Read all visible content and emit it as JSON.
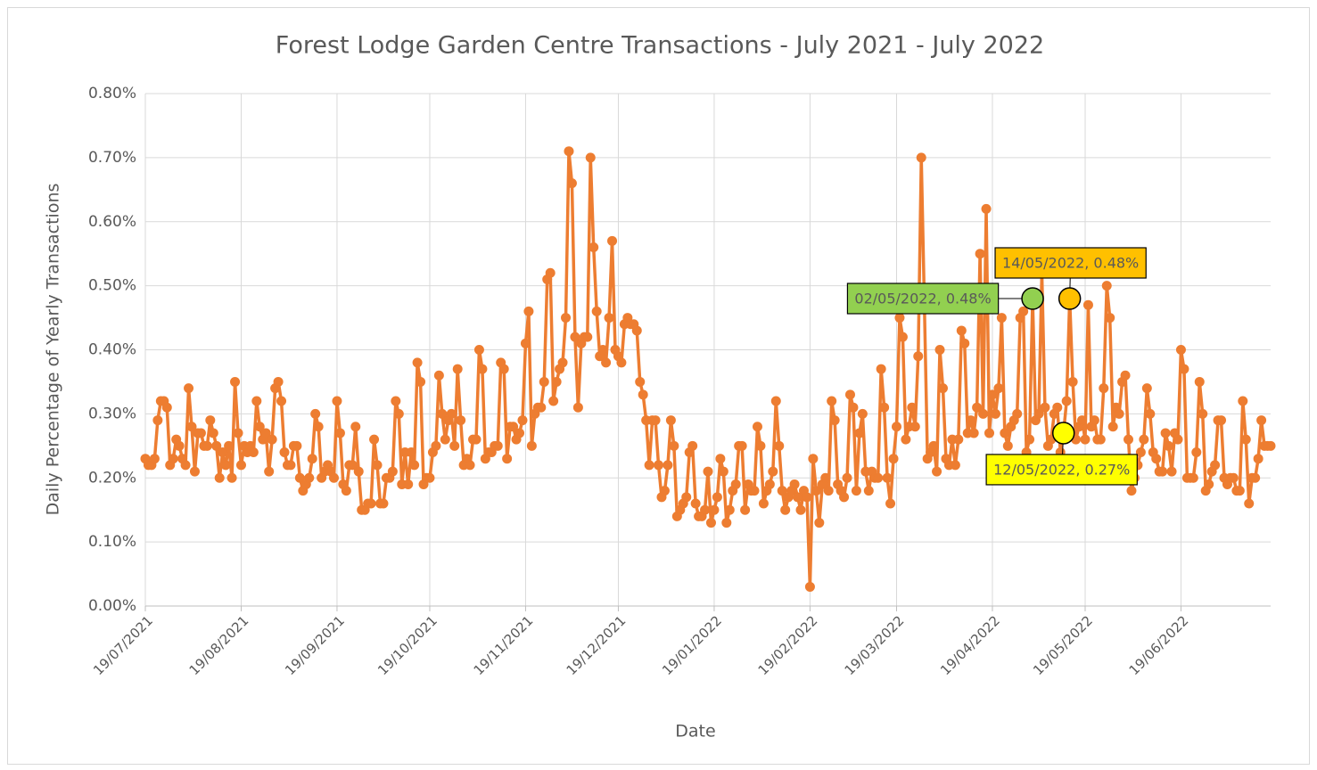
{
  "chart_data": {
    "type": "line",
    "title": "Forest Lodge Garden Centre Transactions - July 2021 - July 2022",
    "x_label": "Date",
    "y_label": "Daily Percentage of Yearly Transactions",
    "x": [
      "19/07/2021",
      "20/07/2021",
      "21/07/2021",
      "22/07/2021",
      "23/07/2021",
      "24/07/2021",
      "25/07/2021",
      "26/07/2021",
      "27/07/2021",
      "28/07/2021",
      "29/07/2021",
      "30/07/2021",
      "31/07/2021",
      "01/08/2021",
      "02/08/2021",
      "03/08/2021",
      "04/08/2021",
      "05/08/2021",
      "06/08/2021",
      "07/08/2021",
      "08/08/2021",
      "09/08/2021",
      "10/08/2021",
      "11/08/2021",
      "12/08/2021",
      "13/08/2021",
      "14/08/2021",
      "15/08/2021",
      "16/08/2021",
      "17/08/2021",
      "18/08/2021",
      "19/08/2021",
      "20/08/2021",
      "21/08/2021",
      "22/08/2021",
      "23/08/2021",
      "24/08/2021",
      "25/08/2021",
      "26/08/2021",
      "27/08/2021",
      "28/08/2021",
      "29/08/2021",
      "30/08/2021",
      "31/08/2021",
      "01/09/2021",
      "02/09/2021",
      "03/09/2021",
      "04/09/2021",
      "05/09/2021",
      "06/09/2021",
      "07/09/2021",
      "08/09/2021",
      "09/09/2021",
      "10/09/2021",
      "11/09/2021",
      "12/09/2021",
      "13/09/2021",
      "14/09/2021",
      "15/09/2021",
      "16/09/2021",
      "17/09/2021",
      "18/09/2021",
      "19/09/2021",
      "20/09/2021",
      "21/09/2021",
      "22/09/2021",
      "23/09/2021",
      "24/09/2021",
      "25/09/2021",
      "26/09/2021",
      "27/09/2021",
      "28/09/2021",
      "29/09/2021",
      "30/09/2021",
      "01/10/2021",
      "02/10/2021",
      "03/10/2021",
      "04/10/2021",
      "05/10/2021",
      "06/10/2021",
      "07/10/2021",
      "08/10/2021",
      "09/10/2021",
      "10/10/2021",
      "11/10/2021",
      "12/10/2021",
      "13/10/2021",
      "14/10/2021",
      "15/10/2021",
      "16/10/2021",
      "17/10/2021",
      "18/10/2021",
      "19/10/2021",
      "20/10/2021",
      "21/10/2021",
      "22/10/2021",
      "23/10/2021",
      "24/10/2021",
      "25/10/2021",
      "26/10/2021",
      "27/10/2021",
      "28/10/2021",
      "29/10/2021",
      "30/10/2021",
      "31/10/2021",
      "01/11/2021",
      "02/11/2021",
      "03/11/2021",
      "04/11/2021",
      "05/11/2021",
      "06/11/2021",
      "07/11/2021",
      "08/11/2021",
      "09/11/2021",
      "10/11/2021",
      "11/11/2021",
      "12/11/2021",
      "13/11/2021",
      "14/11/2021",
      "15/11/2021",
      "16/11/2021",
      "17/11/2021",
      "18/11/2021",
      "19/11/2021",
      "20/11/2021",
      "21/11/2021",
      "22/11/2021",
      "23/11/2021",
      "24/11/2021",
      "25/11/2021",
      "26/11/2021",
      "27/11/2021",
      "28/11/2021",
      "29/11/2021",
      "30/11/2021",
      "01/12/2021",
      "02/12/2021",
      "03/12/2021",
      "04/12/2021",
      "05/12/2021",
      "06/12/2021",
      "07/12/2021",
      "08/12/2021",
      "09/12/2021",
      "10/12/2021",
      "11/12/2021",
      "12/12/2021",
      "13/12/2021",
      "14/12/2021",
      "15/12/2021",
      "16/12/2021",
      "17/12/2021",
      "18/12/2021",
      "19/12/2021",
      "20/12/2021",
      "21/12/2021",
      "22/12/2021",
      "23/12/2021",
      "24/12/2021",
      "25/12/2021",
      "26/12/2021",
      "27/12/2021",
      "28/12/2021",
      "29/12/2021",
      "30/12/2021",
      "31/12/2021",
      "01/01/2022",
      "02/01/2022",
      "03/01/2022",
      "04/01/2022",
      "05/01/2022",
      "06/01/2022",
      "07/01/2022",
      "08/01/2022",
      "09/01/2022",
      "10/01/2022",
      "11/01/2022",
      "12/01/2022",
      "13/01/2022",
      "14/01/2022",
      "15/01/2022",
      "16/01/2022",
      "17/01/2022",
      "18/01/2022",
      "19/01/2022",
      "20/01/2022",
      "21/01/2022",
      "22/01/2022",
      "23/01/2022",
      "24/01/2022",
      "25/01/2022",
      "26/01/2022",
      "27/01/2022",
      "28/01/2022",
      "29/01/2022",
      "30/01/2022",
      "31/01/2022",
      "01/02/2022",
      "02/02/2022",
      "03/02/2022",
      "04/02/2022",
      "05/02/2022",
      "06/02/2022",
      "07/02/2022",
      "08/02/2022",
      "09/02/2022",
      "10/02/2022",
      "11/02/2022",
      "12/02/2022",
      "13/02/2022",
      "14/02/2022",
      "15/02/2022",
      "16/02/2022",
      "17/02/2022",
      "18/02/2022",
      "19/02/2022",
      "20/02/2022",
      "21/02/2022",
      "22/02/2022",
      "23/02/2022",
      "24/02/2022",
      "25/02/2022",
      "26/02/2022",
      "27/02/2022",
      "28/02/2022",
      "01/03/2022",
      "02/03/2022",
      "03/03/2022",
      "04/03/2022",
      "05/03/2022",
      "06/03/2022",
      "07/03/2022",
      "08/03/2022",
      "09/03/2022",
      "10/03/2022",
      "11/03/2022",
      "12/03/2022",
      "13/03/2022",
      "14/03/2022",
      "15/03/2022",
      "16/03/2022",
      "17/03/2022",
      "18/03/2022",
      "19/03/2022",
      "20/03/2022",
      "21/03/2022",
      "22/03/2022",
      "23/03/2022",
      "24/03/2022",
      "25/03/2022",
      "26/03/2022",
      "27/03/2022",
      "28/03/2022",
      "29/03/2022",
      "30/03/2022",
      "31/03/2022",
      "01/04/2022",
      "02/04/2022",
      "03/04/2022",
      "04/04/2022",
      "05/04/2022",
      "06/04/2022",
      "07/04/2022",
      "08/04/2022",
      "09/04/2022",
      "10/04/2022",
      "11/04/2022",
      "12/04/2022",
      "13/04/2022",
      "14/04/2022",
      "15/04/2022",
      "16/04/2022",
      "17/04/2022",
      "18/04/2022",
      "19/04/2022",
      "20/04/2022",
      "21/04/2022",
      "22/04/2022",
      "23/04/2022",
      "24/04/2022",
      "25/04/2022",
      "26/04/2022",
      "27/04/2022",
      "28/04/2022",
      "29/04/2022",
      "30/04/2022",
      "01/05/2022",
      "02/05/2022",
      "03/05/2022",
      "04/05/2022",
      "05/05/2022",
      "06/05/2022",
      "07/05/2022",
      "08/05/2022",
      "09/05/2022",
      "10/05/2022",
      "11/05/2022",
      "12/05/2022",
      "13/05/2022",
      "14/05/2022",
      "15/05/2022",
      "16/05/2022",
      "17/05/2022",
      "18/05/2022",
      "19/05/2022",
      "20/05/2022",
      "21/05/2022",
      "22/05/2022",
      "23/05/2022",
      "24/05/2022",
      "25/05/2022",
      "26/05/2022",
      "27/05/2022",
      "28/05/2022",
      "29/05/2022",
      "30/05/2022",
      "31/05/2022",
      "01/06/2022",
      "02/06/2022",
      "03/06/2022",
      "04/06/2022",
      "05/06/2022",
      "06/06/2022",
      "07/06/2022",
      "08/06/2022",
      "09/06/2022",
      "10/06/2022",
      "11/06/2022",
      "12/06/2022",
      "13/06/2022",
      "14/06/2022",
      "15/06/2022",
      "16/06/2022",
      "17/06/2022",
      "18/06/2022",
      "19/06/2022",
      "20/06/2022",
      "21/06/2022",
      "22/06/2022",
      "23/06/2022",
      "24/06/2022",
      "25/06/2022",
      "26/06/2022",
      "27/06/2022",
      "28/06/2022",
      "29/06/2022",
      "30/06/2022",
      "01/07/2022",
      "02/07/2022",
      "03/07/2022",
      "04/07/2022",
      "05/07/2022",
      "06/07/2022",
      "07/07/2022",
      "08/07/2022",
      "09/07/2022",
      "10/07/2022",
      "11/07/2022",
      "12/07/2022",
      "13/07/2022",
      "14/07/2022",
      "15/07/2022",
      "16/07/2022",
      "17/07/2022",
      "18/07/2022"
    ],
    "series": [
      {
        "color": "#ed7d31",
        "values": [
          0.23,
          0.22,
          0.22,
          0.23,
          0.29,
          0.32,
          0.32,
          0.31,
          0.22,
          0.23,
          0.26,
          0.25,
          0.23,
          0.22,
          0.34,
          0.28,
          0.21,
          0.27,
          0.27,
          0.25,
          0.25,
          0.29,
          0.27,
          0.25,
          0.2,
          0.24,
          0.22,
          0.25,
          0.2,
          0.35,
          0.27,
          0.22,
          0.25,
          0.24,
          0.25,
          0.24,
          0.32,
          0.28,
          0.26,
          0.27,
          0.21,
          0.26,
          0.34,
          0.35,
          0.32,
          0.24,
          0.22,
          0.22,
          0.25,
          0.25,
          0.2,
          0.18,
          0.19,
          0.2,
          0.23,
          0.3,
          0.28,
          0.2,
          0.21,
          0.22,
          0.21,
          0.2,
          0.32,
          0.27,
          0.19,
          0.18,
          0.22,
          0.22,
          0.28,
          0.21,
          0.15,
          0.15,
          0.16,
          0.16,
          0.26,
          0.22,
          0.16,
          0.16,
          0.2,
          0.2,
          0.21,
          0.32,
          0.3,
          0.19,
          0.24,
          0.19,
          0.24,
          0.22,
          0.38,
          0.35,
          0.19,
          0.2,
          0.2,
          0.24,
          0.25,
          0.36,
          0.3,
          0.26,
          0.29,
          0.3,
          0.25,
          0.37,
          0.29,
          0.22,
          0.23,
          0.22,
          0.26,
          0.26,
          0.4,
          0.37,
          0.23,
          0.24,
          0.24,
          0.25,
          0.25,
          0.38,
          0.37,
          0.23,
          0.28,
          0.28,
          0.26,
          0.27,
          0.29,
          0.41,
          0.46,
          0.25,
          0.3,
          0.31,
          0.31,
          0.35,
          0.51,
          0.52,
          0.32,
          0.35,
          0.37,
          0.38,
          0.45,
          0.71,
          0.66,
          0.42,
          0.31,
          0.41,
          0.42,
          0.42,
          0.7,
          0.56,
          0.46,
          0.39,
          0.4,
          0.38,
          0.45,
          0.57,
          0.4,
          0.39,
          0.38,
          0.44,
          0.45,
          0.44,
          0.44,
          0.43,
          0.35,
          0.33,
          0.29,
          0.22,
          0.29,
          0.29,
          0.22,
          0.17,
          0.18,
          0.22,
          0.29,
          0.25,
          0.14,
          0.15,
          0.16,
          0.17,
          0.24,
          0.25,
          0.16,
          0.14,
          0.14,
          0.15,
          0.21,
          0.13,
          0.15,
          0.17,
          0.23,
          0.21,
          0.13,
          0.15,
          0.18,
          0.19,
          0.25,
          0.25,
          0.15,
          0.19,
          0.18,
          0.18,
          0.28,
          0.25,
          0.16,
          0.18,
          0.19,
          0.21,
          0.32,
          0.25,
          0.18,
          0.15,
          0.17,
          0.18,
          0.19,
          0.17,
          0.15,
          0.18,
          0.17,
          0.03,
          0.23,
          0.18,
          0.13,
          0.19,
          0.2,
          0.18,
          0.32,
          0.29,
          0.19,
          0.18,
          0.17,
          0.2,
          0.33,
          0.31,
          0.18,
          0.27,
          0.3,
          0.21,
          0.18,
          0.21,
          0.2,
          0.2,
          0.37,
          0.31,
          0.2,
          0.16,
          0.23,
          0.28,
          0.45,
          0.42,
          0.26,
          0.28,
          0.31,
          0.28,
          0.39,
          0.7,
          0.47,
          0.23,
          0.24,
          0.25,
          0.21,
          0.4,
          0.34,
          0.23,
          0.22,
          0.26,
          0.22,
          0.26,
          0.43,
          0.41,
          0.27,
          0.29,
          0.27,
          0.31,
          0.55,
          0.3,
          0.62,
          0.27,
          0.33,
          0.3,
          0.34,
          0.45,
          0.27,
          0.25,
          0.28,
          0.29,
          0.3,
          0.45,
          0.46,
          0.24,
          0.26,
          0.48,
          0.29,
          0.3,
          0.52,
          0.31,
          0.25,
          0.26,
          0.3,
          0.31,
          0.24,
          0.27,
          0.32,
          0.48,
          0.35,
          0.26,
          0.28,
          0.29,
          0.26,
          0.47,
          0.28,
          0.29,
          0.26,
          0.26,
          0.34,
          0.5,
          0.45,
          0.28,
          0.31,
          0.3,
          0.35,
          0.36,
          0.26,
          0.18,
          0.2,
          0.22,
          0.24,
          0.26,
          0.34,
          0.3,
          0.24,
          0.23,
          0.21,
          0.21,
          0.27,
          0.25,
          0.21,
          0.27,
          0.26,
          0.4,
          0.37,
          0.2,
          0.2,
          0.2,
          0.24,
          0.35,
          0.3,
          0.18,
          0.19,
          0.21,
          0.22,
          0.29,
          0.29,
          0.2,
          0.19,
          0.2,
          0.2,
          0.18,
          0.18,
          0.32,
          0.26,
          0.16,
          0.2,
          0.2,
          0.23,
          0.29,
          0.25,
          0.25,
          0.25
        ]
      }
    ],
    "xlim": [
      "19/07/2021",
      "18/07/2022"
    ],
    "xticks": [
      "19/07/2021",
      "19/08/2021",
      "19/09/2021",
      "19/10/2021",
      "19/11/2021",
      "19/12/2021",
      "19/01/2022",
      "19/02/2022",
      "19/03/2022",
      "19/04/2022",
      "19/05/2022",
      "19/06/2022"
    ],
    "ylim": [
      0,
      0.8
    ],
    "yticks": [
      {
        "value": 0,
        "label": "0.00%"
      },
      {
        "value": 0.1,
        "label": "0.10%"
      },
      {
        "value": 0.2,
        "label": "0.20%"
      },
      {
        "value": 0.3,
        "label": "0.30%"
      },
      {
        "value": 0.4,
        "label": "0.40%"
      },
      {
        "value": 0.5,
        "label": "0.50%"
      },
      {
        "value": 0.6,
        "label": "0.60%"
      },
      {
        "value": 0.7,
        "label": "0.70%"
      },
      {
        "value": 0.8,
        "label": "0.80%"
      }
    ],
    "grid": true,
    "annotations": [
      {
        "text": "02/05/2022, 0.48%",
        "x": "02/05/2022",
        "y": 0.48,
        "color": "#92d050"
      },
      {
        "text": "14/05/2022, 0.48%",
        "x": "14/05/2022",
        "y": 0.48,
        "color": "#ffc000"
      },
      {
        "text": "12/05/2022, 0.27%",
        "x": "12/05/2022",
        "y": 0.27,
        "color": "#ffff00"
      }
    ]
  }
}
